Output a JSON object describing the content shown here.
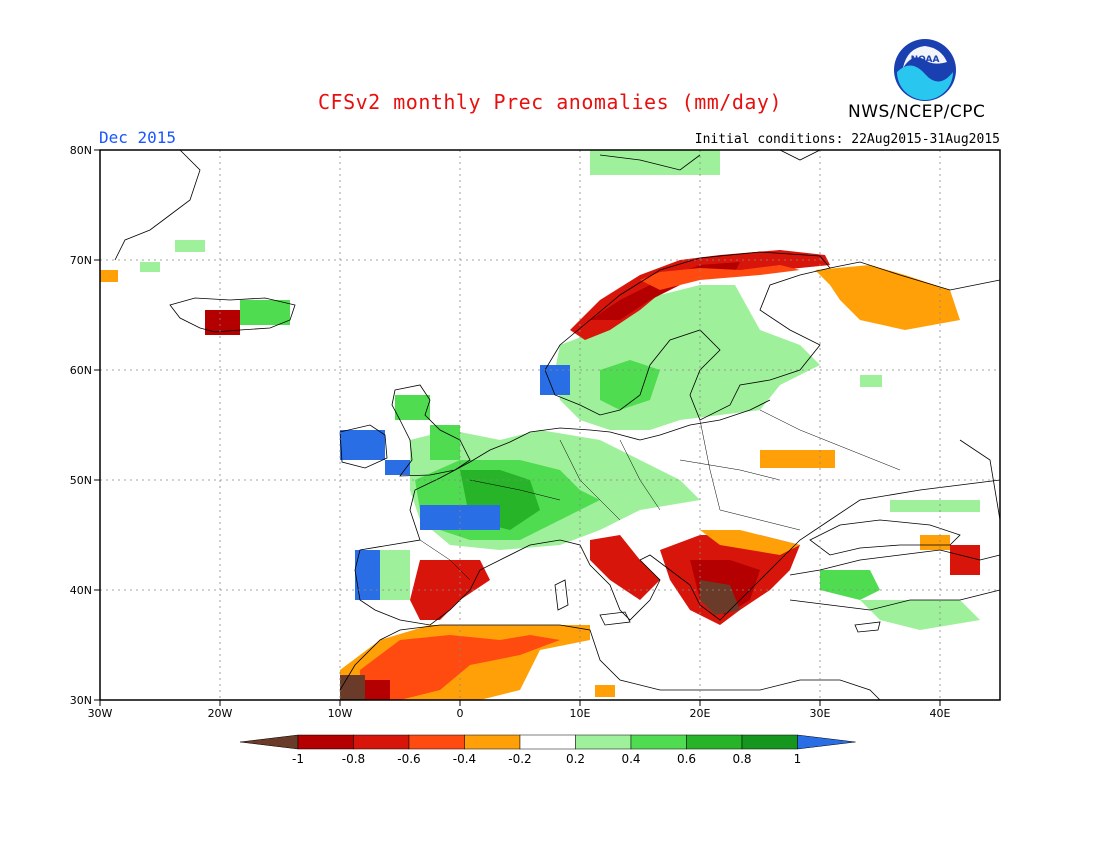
{
  "header": {
    "title": "CFSv2 monthly Prec anomalies (mm/day)",
    "agency": "NWS/NCEP/CPC",
    "month": "Dec 2015",
    "initial_conditions": "Initial conditions: 22Aug2015-31Aug2015",
    "logo_text": "NOAA"
  },
  "axes": {
    "lat_labels": [
      "80N",
      "70N",
      "60N",
      "50N",
      "40N",
      "30N"
    ],
    "lon_labels": [
      "30W",
      "20W",
      "10W",
      "0",
      "10E",
      "20E",
      "30E",
      "40E"
    ]
  },
  "colorbar": {
    "labels": [
      "-1",
      "-0.8",
      "-0.6",
      "-0.4",
      "-0.2",
      "0.2",
      "0.4",
      "0.6",
      "0.8",
      "1"
    ],
    "colors": [
      "#6b3b2a",
      "#b40000",
      "#d8150b",
      "#ff4a10",
      "#ffa008",
      "#ffffff",
      "#9ef09a",
      "#50dc50",
      "#28b428",
      "#15961e",
      "#2a6ee6"
    ]
  },
  "chart_data": {
    "type": "heatmap",
    "title": "CFSv2 monthly Prec anomalies (mm/day)",
    "xlim": [
      -30,
      45
    ],
    "ylim": [
      30,
      80
    ],
    "anomaly_regions": [
      {
        "region": "Ireland / Scotland / Bay of Biscay",
        "class": ">1"
      },
      {
        "region": "France / Benelux / Germany",
        "class": "0.2 to 0.8"
      },
      {
        "region": "Southern Scandinavia / Baltic",
        "class": "0.2 to 0.6"
      },
      {
        "region": "Norwegian coast",
        "class": "-1 to -0.4"
      },
      {
        "region": "Balkans / Greece",
        "class": "< -0.6"
      },
      {
        "region": "Morocco / Algeria",
        "class": "-0.8 to -0.2"
      },
      {
        "region": "Northwest Russia",
        "class": "-0.4 to -0.2"
      },
      {
        "region": "Turkey",
        "class": "0.2 to 0.6"
      }
    ]
  }
}
